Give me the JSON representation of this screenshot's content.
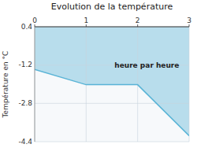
{
  "chart_data": {
    "type": "area",
    "title": "Evolution de la température",
    "y_label": "Température en °C",
    "annotations": [
      {
        "text": "heure par heure",
        "x": 1.55,
        "y": -1.1
      }
    ],
    "x": [
      0,
      1.0,
      2.0,
      3.0
    ],
    "values": [
      -1.38,
      -2.02,
      -2.02,
      -4.15
    ],
    "color": "#5ab4d6",
    "xlim": [
      0,
      3
    ],
    "ylim": [
      -4.4,
      0.4
    ],
    "xticks": [
      0,
      1,
      2,
      3
    ],
    "yticks": [
      0.4,
      -1.2,
      -2.8,
      -4.4
    ],
    "grid": true
  }
}
